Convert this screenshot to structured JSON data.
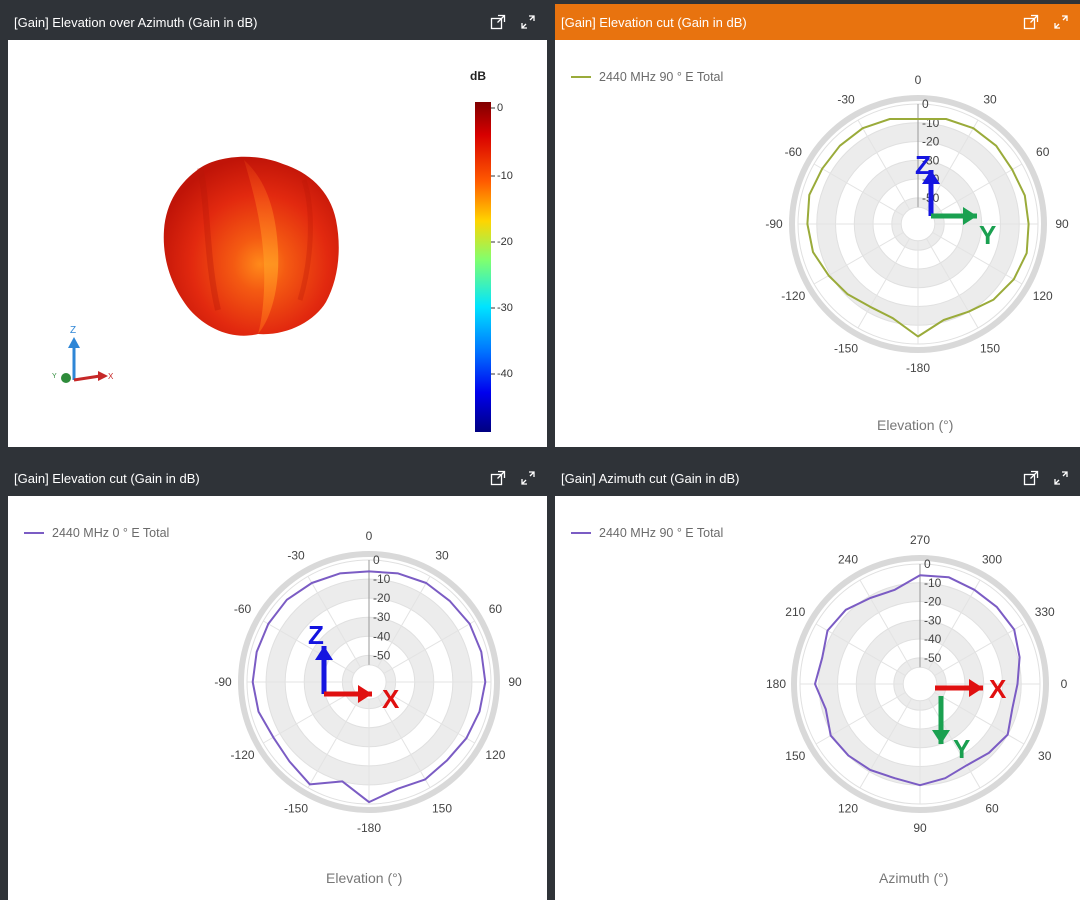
{
  "panels": [
    {
      "title": "[Gain] Elevation over Azimuth (Gain in dB)",
      "active": false,
      "unit_label": "dB",
      "colorbar_ticks": [
        "0",
        "-10",
        "-20",
        "-30",
        "-40"
      ],
      "axis_triad": {
        "z": "Z",
        "y": "Y",
        "x": "X"
      }
    },
    {
      "title": "[Gain] Elevation cut (Gain in dB)",
      "active": true,
      "legend": "2440 MHz 90 ° E Total",
      "axis_title": "Elevation (°)",
      "color": "#9aab3a"
    },
    {
      "title": "[Gain] Elevation cut (Gain in dB)",
      "active": false,
      "legend": "2440 MHz 0 ° E Total",
      "axis_title": "Elevation (°)",
      "color": "#7b5cc4"
    },
    {
      "title": "[Gain] Azimuth cut (Gain in dB)",
      "active": false,
      "legend": "2440 MHz 90 ° E Total",
      "axis_title": "Azimuth (°)",
      "color": "#7b5cc4"
    }
  ],
  "chart_data": [
    {
      "type": "heatmap",
      "title": "[Gain] Elevation over Azimuth (Gain in dB)",
      "description_unit": "dB",
      "colorbar_range": [
        -48,
        0
      ],
      "colorbar_ticks": [
        0,
        -10,
        -20,
        -30,
        -40
      ]
    },
    {
      "type": "polar-line",
      "title": "[Gain] Elevation cut (Gain in dB)",
      "series": [
        {
          "name": "2440 MHz 90 ° E Total",
          "color": "#9aab3a",
          "angles": [
            0,
            15,
            30,
            45,
            60,
            75,
            90,
            105,
            120,
            135,
            150,
            165,
            180,
            195,
            210,
            225,
            240,
            255,
            270,
            285,
            300,
            315,
            330,
            345
          ],
          "values": [
            -8,
            -6,
            -5,
            -5,
            -6,
            -5,
            -5,
            -4,
            -5,
            -7,
            -10,
            -11,
            -4,
            -12,
            -13,
            -11,
            -9,
            -6,
            -5,
            -4,
            -5,
            -5,
            -5,
            -6
          ]
        }
      ],
      "angle_labels": [
        "0",
        "30",
        "60",
        "90",
        "120",
        "150",
        "-180",
        "-150",
        "-120",
        "-90",
        "-60",
        "-30"
      ],
      "radial_ticks": [
        "0",
        "-10",
        "-20",
        "-30",
        "-40",
        "-50"
      ],
      "rlim": [
        -55,
        0
      ],
      "axis_title": "Elevation (°)"
    },
    {
      "type": "polar-line",
      "title": "[Gain] Elevation cut (Gain in dB)",
      "series": [
        {
          "name": "2440 MHz 0 ° E Total",
          "color": "#7b5cc4",
          "angles": [
            0,
            15,
            30,
            45,
            60,
            75,
            90,
            105,
            120,
            135,
            150,
            165,
            180,
            195,
            210,
            225,
            240,
            255,
            270,
            285,
            300,
            315,
            330,
            345
          ],
          "values": [
            -6,
            -5,
            -4,
            -4,
            -3,
            -3,
            -3,
            -4,
            -5,
            -6,
            -5,
            -6,
            -1,
            -10,
            -2,
            -5,
            -6,
            -4,
            -3,
            -3,
            -3,
            -3,
            -4,
            -5
          ]
        }
      ],
      "angle_labels": [
        "0",
        "30",
        "60",
        "90",
        "120",
        "150",
        "-180",
        "-150",
        "-120",
        "-90",
        "-60",
        "-30"
      ],
      "radial_ticks": [
        "0",
        "-10",
        "-20",
        "-30",
        "-40",
        "-50"
      ],
      "rlim": [
        -55,
        0
      ],
      "axis_title": "Elevation (°)"
    },
    {
      "type": "polar-line",
      "title": "[Gain] Azimuth cut (Gain in dB)",
      "series": [
        {
          "name": "2440 MHz 90 ° E Total",
          "color": "#7b5cc4",
          "angles": [
            0,
            15,
            30,
            45,
            60,
            75,
            90,
            105,
            120,
            135,
            150,
            165,
            180,
            195,
            210,
            225,
            240,
            255,
            270,
            285,
            300,
            315,
            330,
            345
          ],
          "values": [
            -12,
            -13,
            -10,
            -12,
            -14,
            -12,
            -10,
            -12,
            -11,
            -10,
            -9,
            -12,
            -8,
            -10,
            -7,
            -8,
            -11,
            -12,
            -6,
            -5,
            -6,
            -6,
            -6,
            -9
          ]
        }
      ],
      "angle_labels": [
        "0",
        "30",
        "60",
        "90",
        "120",
        "150",
        "180",
        "210",
        "240",
        "270",
        "300",
        "330"
      ],
      "radial_ticks": [
        "0",
        "-10",
        "-20",
        "-30",
        "-40",
        "-50"
      ],
      "rlim": [
        -55,
        0
      ],
      "axis_title": "Azimuth (°)"
    }
  ],
  "axis_arrows": {
    "elev90": {
      "up": "Z",
      "right": "Y",
      "up_color": "#1515e0",
      "right_color": "#1aa050"
    },
    "elev0": {
      "up": "Z",
      "right": "X",
      "up_color": "#1515e0",
      "right_color": "#e01010"
    },
    "azim": {
      "right": "X",
      "down": "Y",
      "right_color": "#e01010",
      "down_color": "#1aa050"
    }
  }
}
